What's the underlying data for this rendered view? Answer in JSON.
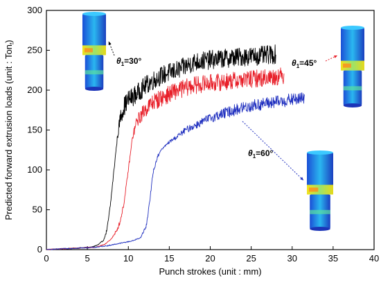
{
  "chart_data": {
    "type": "line",
    "xlabel": "Punch strokes (unit : mm)",
    "ylabel": "Predicted forward extrusion loads (unit : Ton",
    "ylabel_sub": "f",
    "ylabel_close": ")",
    "xlim": [
      0,
      40
    ],
    "ylim": [
      0,
      300
    ],
    "x_ticks": [
      0,
      5,
      10,
      15,
      20,
      25,
      30,
      35,
      40
    ],
    "y_ticks": [
      0,
      50,
      100,
      150,
      200,
      250,
      300
    ],
    "grid": false,
    "series": [
      {
        "label": "θ1=30°",
        "color": "#000000",
        "x": [
          0,
          2,
          4,
          5.5,
          6.3,
          7.0,
          7.4,
          7.8,
          8.2,
          8.6,
          9.0,
          9.5,
          10,
          11,
          12,
          13,
          14,
          15,
          16,
          17,
          18,
          20,
          22,
          24,
          26,
          28
        ],
        "y": [
          0,
          1,
          2,
          3,
          6,
          12,
          25,
          55,
          95,
          135,
          165,
          180,
          188,
          195,
          205,
          212,
          218,
          222,
          225,
          230,
          235,
          238,
          240,
          242,
          243,
          245
        ]
      },
      {
        "label": "θ1=45°",
        "color": "#e8202a",
        "x": [
          0,
          2,
          4,
          6,
          7.0,
          7.8,
          8.5,
          9.0,
          9.5,
          10.0,
          10.5,
          11,
          12,
          13,
          14,
          15,
          16,
          17,
          18,
          20,
          22,
          24,
          26,
          28,
          29
        ],
        "y": [
          0,
          1,
          2,
          3,
          6,
          12,
          22,
          35,
          60,
          100,
          140,
          160,
          175,
          185,
          190,
          195,
          200,
          203,
          206,
          209,
          211,
          213,
          215,
          217,
          218
        ]
      },
      {
        "label": "θ1=60°",
        "color": "#1f2fbf",
        "x": [
          0,
          2,
          4,
          6,
          7.5,
          8.5,
          9.5,
          10.5,
          11.5,
          12.2,
          12.6,
          13.0,
          13.5,
          14,
          15,
          16,
          17,
          18,
          19,
          20,
          22,
          24,
          26,
          28,
          30,
          31.5
        ],
        "y": [
          0,
          1,
          2,
          3,
          5,
          7,
          9,
          11,
          15,
          30,
          60,
          95,
          115,
          125,
          135,
          142,
          150,
          155,
          160,
          165,
          172,
          178,
          182,
          185,
          188,
          190
        ]
      }
    ],
    "annotations": [
      {
        "text_main": "θ",
        "text_sub": "1",
        "text_tail": "=30°"
      },
      {
        "text_main": "θ",
        "text_sub": "1",
        "text_tail": "=45°"
      },
      {
        "text_main": "θ",
        "text_sub": "1",
        "text_tail": "=60°"
      }
    ]
  }
}
